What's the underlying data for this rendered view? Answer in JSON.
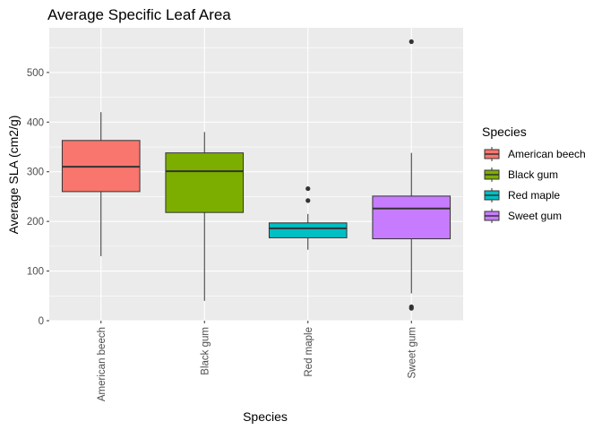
{
  "chart_data": {
    "type": "box",
    "title": "Average Specific Leaf Area",
    "xlabel": "Species",
    "ylabel": "Average SLA (cm2/g)",
    "ylim": [
      0,
      590
    ],
    "yticks": [
      0,
      100,
      200,
      300,
      400,
      500
    ],
    "grid": true,
    "legend_title": "Species",
    "legend_position": "right",
    "categories": [
      "American beech",
      "Black gum",
      "Red maple",
      "Sweet gum"
    ],
    "boxes": [
      {
        "category": "American beech",
        "color": "#F8766D",
        "whisker_low": 130,
        "q1": 260,
        "median": 310,
        "q3": 363,
        "whisker_high": 420,
        "outliers": []
      },
      {
        "category": "Black gum",
        "color": "#7CAE00",
        "whisker_low": 40,
        "q1": 218,
        "median": 301,
        "q3": 338,
        "whisker_high": 380,
        "outliers": []
      },
      {
        "category": "Red maple",
        "color": "#00BFC4",
        "whisker_low": 143,
        "q1": 167,
        "median": 186,
        "q3": 197,
        "whisker_high": 215,
        "outliers": [
          242,
          266
        ]
      },
      {
        "category": "Sweet gum",
        "color": "#C77CFF",
        "whisker_low": 55,
        "q1": 165,
        "median": 226,
        "q3": 251,
        "whisker_high": 338,
        "outliers": [
          25,
          28,
          562
        ]
      }
    ]
  }
}
